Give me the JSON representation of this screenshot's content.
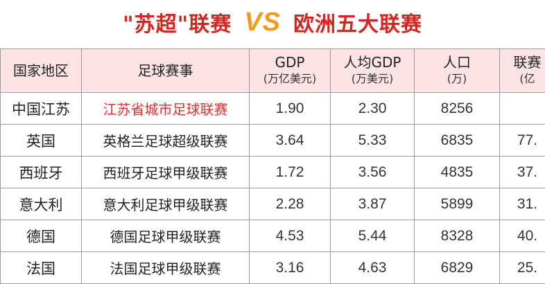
{
  "title": {
    "left": "\"苏超\"联赛",
    "vs": "VS",
    "right": "欧洲五大联赛"
  },
  "table": {
    "headers": [
      {
        "main": "国家地区",
        "sub": ""
      },
      {
        "main": "足球赛事",
        "sub": ""
      },
      {
        "main": "GDP",
        "sub": "(万亿美元)"
      },
      {
        "main": "人均GDP",
        "sub": "(万美元)"
      },
      {
        "main": "人口",
        "sub": "(万)"
      },
      {
        "main": "联赛",
        "sub": "(亿"
      }
    ],
    "rows": [
      {
        "region": "中国江苏",
        "league": "江苏省城市足球联赛",
        "gdp": "1.90",
        "gdp_per_capita": "2.30",
        "population": "8256",
        "league_value": ""
      },
      {
        "region": "英国",
        "league": "英格兰足球超级联赛",
        "gdp": "3.64",
        "gdp_per_capita": "5.33",
        "population": "6835",
        "league_value": "77."
      },
      {
        "region": "西班牙",
        "league": "西班牙足球甲级联赛",
        "gdp": "1.72",
        "gdp_per_capita": "3.56",
        "population": "4835",
        "league_value": "37."
      },
      {
        "region": "意大利",
        "league": "意大利足球甲级联赛",
        "gdp": "2.28",
        "gdp_per_capita": "3.87",
        "population": "5899",
        "league_value": "31."
      },
      {
        "region": "德国",
        "league": "德国足球甲级联赛",
        "gdp": "4.53",
        "gdp_per_capita": "5.44",
        "population": "8328",
        "league_value": "40."
      },
      {
        "region": "法国",
        "league": "法国足球甲级联赛",
        "gdp": "3.16",
        "gdp_per_capita": "4.63",
        "population": "6829",
        "league_value": "25."
      }
    ]
  },
  "colors": {
    "title_red": "#d8241f",
    "vs_orange": "#f39a1f",
    "header_bg": "#fde3e6",
    "highlight_red": "#e0322e"
  }
}
